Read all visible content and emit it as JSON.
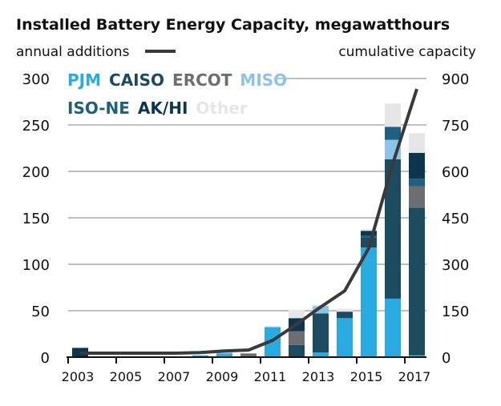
{
  "chart_data": {
    "type": "bar",
    "title": "Installed Battery Energy Capacity, megawatthours",
    "left_axis_label": "annual additions",
    "right_axis_label": "cumulative capacity",
    "categories": [
      2003,
      2004,
      2005,
      2006,
      2007,
      2008,
      2009,
      2010,
      2011,
      2012,
      2013,
      2014,
      2015,
      2016,
      2017
    ],
    "x_tick_labels": [
      "2003",
      "2005",
      "2007",
      "2009",
      "2011",
      "2013",
      "2015",
      "2017"
    ],
    "y_left": {
      "range": [
        0,
        300
      ],
      "ticks": [
        "0",
        "50",
        "100",
        "150",
        "200",
        "250",
        "300"
      ]
    },
    "y_right": {
      "range": [
        0,
        900
      ],
      "ticks": [
        "0",
        "150",
        "300",
        "450",
        "600",
        "750",
        "900"
      ]
    },
    "grid": true,
    "stacked": true,
    "series": [
      {
        "name": "PJM",
        "color": "#29abe2",
        "values": [
          0,
          0,
          0,
          0,
          0,
          2,
          4,
          0,
          32,
          0,
          5,
          42,
          118,
          63,
          2
        ]
      },
      {
        "name": "CAISO",
        "color": "#1c4a5e",
        "values": [
          0,
          0,
          0,
          0,
          0,
          0,
          0,
          0,
          0,
          13,
          42,
          7,
          11,
          150,
          159
        ]
      },
      {
        "name": "ERCOT",
        "color": "#6d6e70",
        "values": [
          0,
          0,
          0,
          0,
          0,
          0,
          0,
          4,
          0,
          15,
          0,
          0,
          0,
          0,
          23
        ]
      },
      {
        "name": "MISO",
        "color": "#8cc3e8",
        "values": [
          0,
          0,
          0,
          0,
          0,
          0,
          1,
          0,
          1,
          0,
          8,
          0,
          0,
          21,
          0
        ]
      },
      {
        "name": "ISO-NE",
        "color": "#1f6080",
        "values": [
          0,
          0,
          0,
          0,
          0,
          0,
          0,
          0,
          0,
          0,
          0,
          0,
          2,
          14,
          8
        ]
      },
      {
        "name": "AK/HI",
        "color": "#0e3550",
        "values": [
          10,
          0,
          0,
          0,
          0,
          0,
          0,
          0,
          0,
          14,
          0,
          0,
          5,
          0,
          28
        ]
      },
      {
        "name": "Other",
        "color": "#e6e6e6",
        "values": [
          0,
          0,
          0,
          0,
          0,
          0,
          0,
          0,
          0,
          9,
          1,
          3,
          2,
          25,
          21
        ]
      }
    ],
    "line_series": {
      "name": "cumulative capacity",
      "axis": "right",
      "color": "#3a3a3a",
      "values": [
        13,
        13,
        13,
        13,
        13,
        15,
        20,
        23,
        54,
        106,
        162,
        214,
        352,
        625,
        866
      ]
    },
    "legend_placement": "top-left"
  }
}
